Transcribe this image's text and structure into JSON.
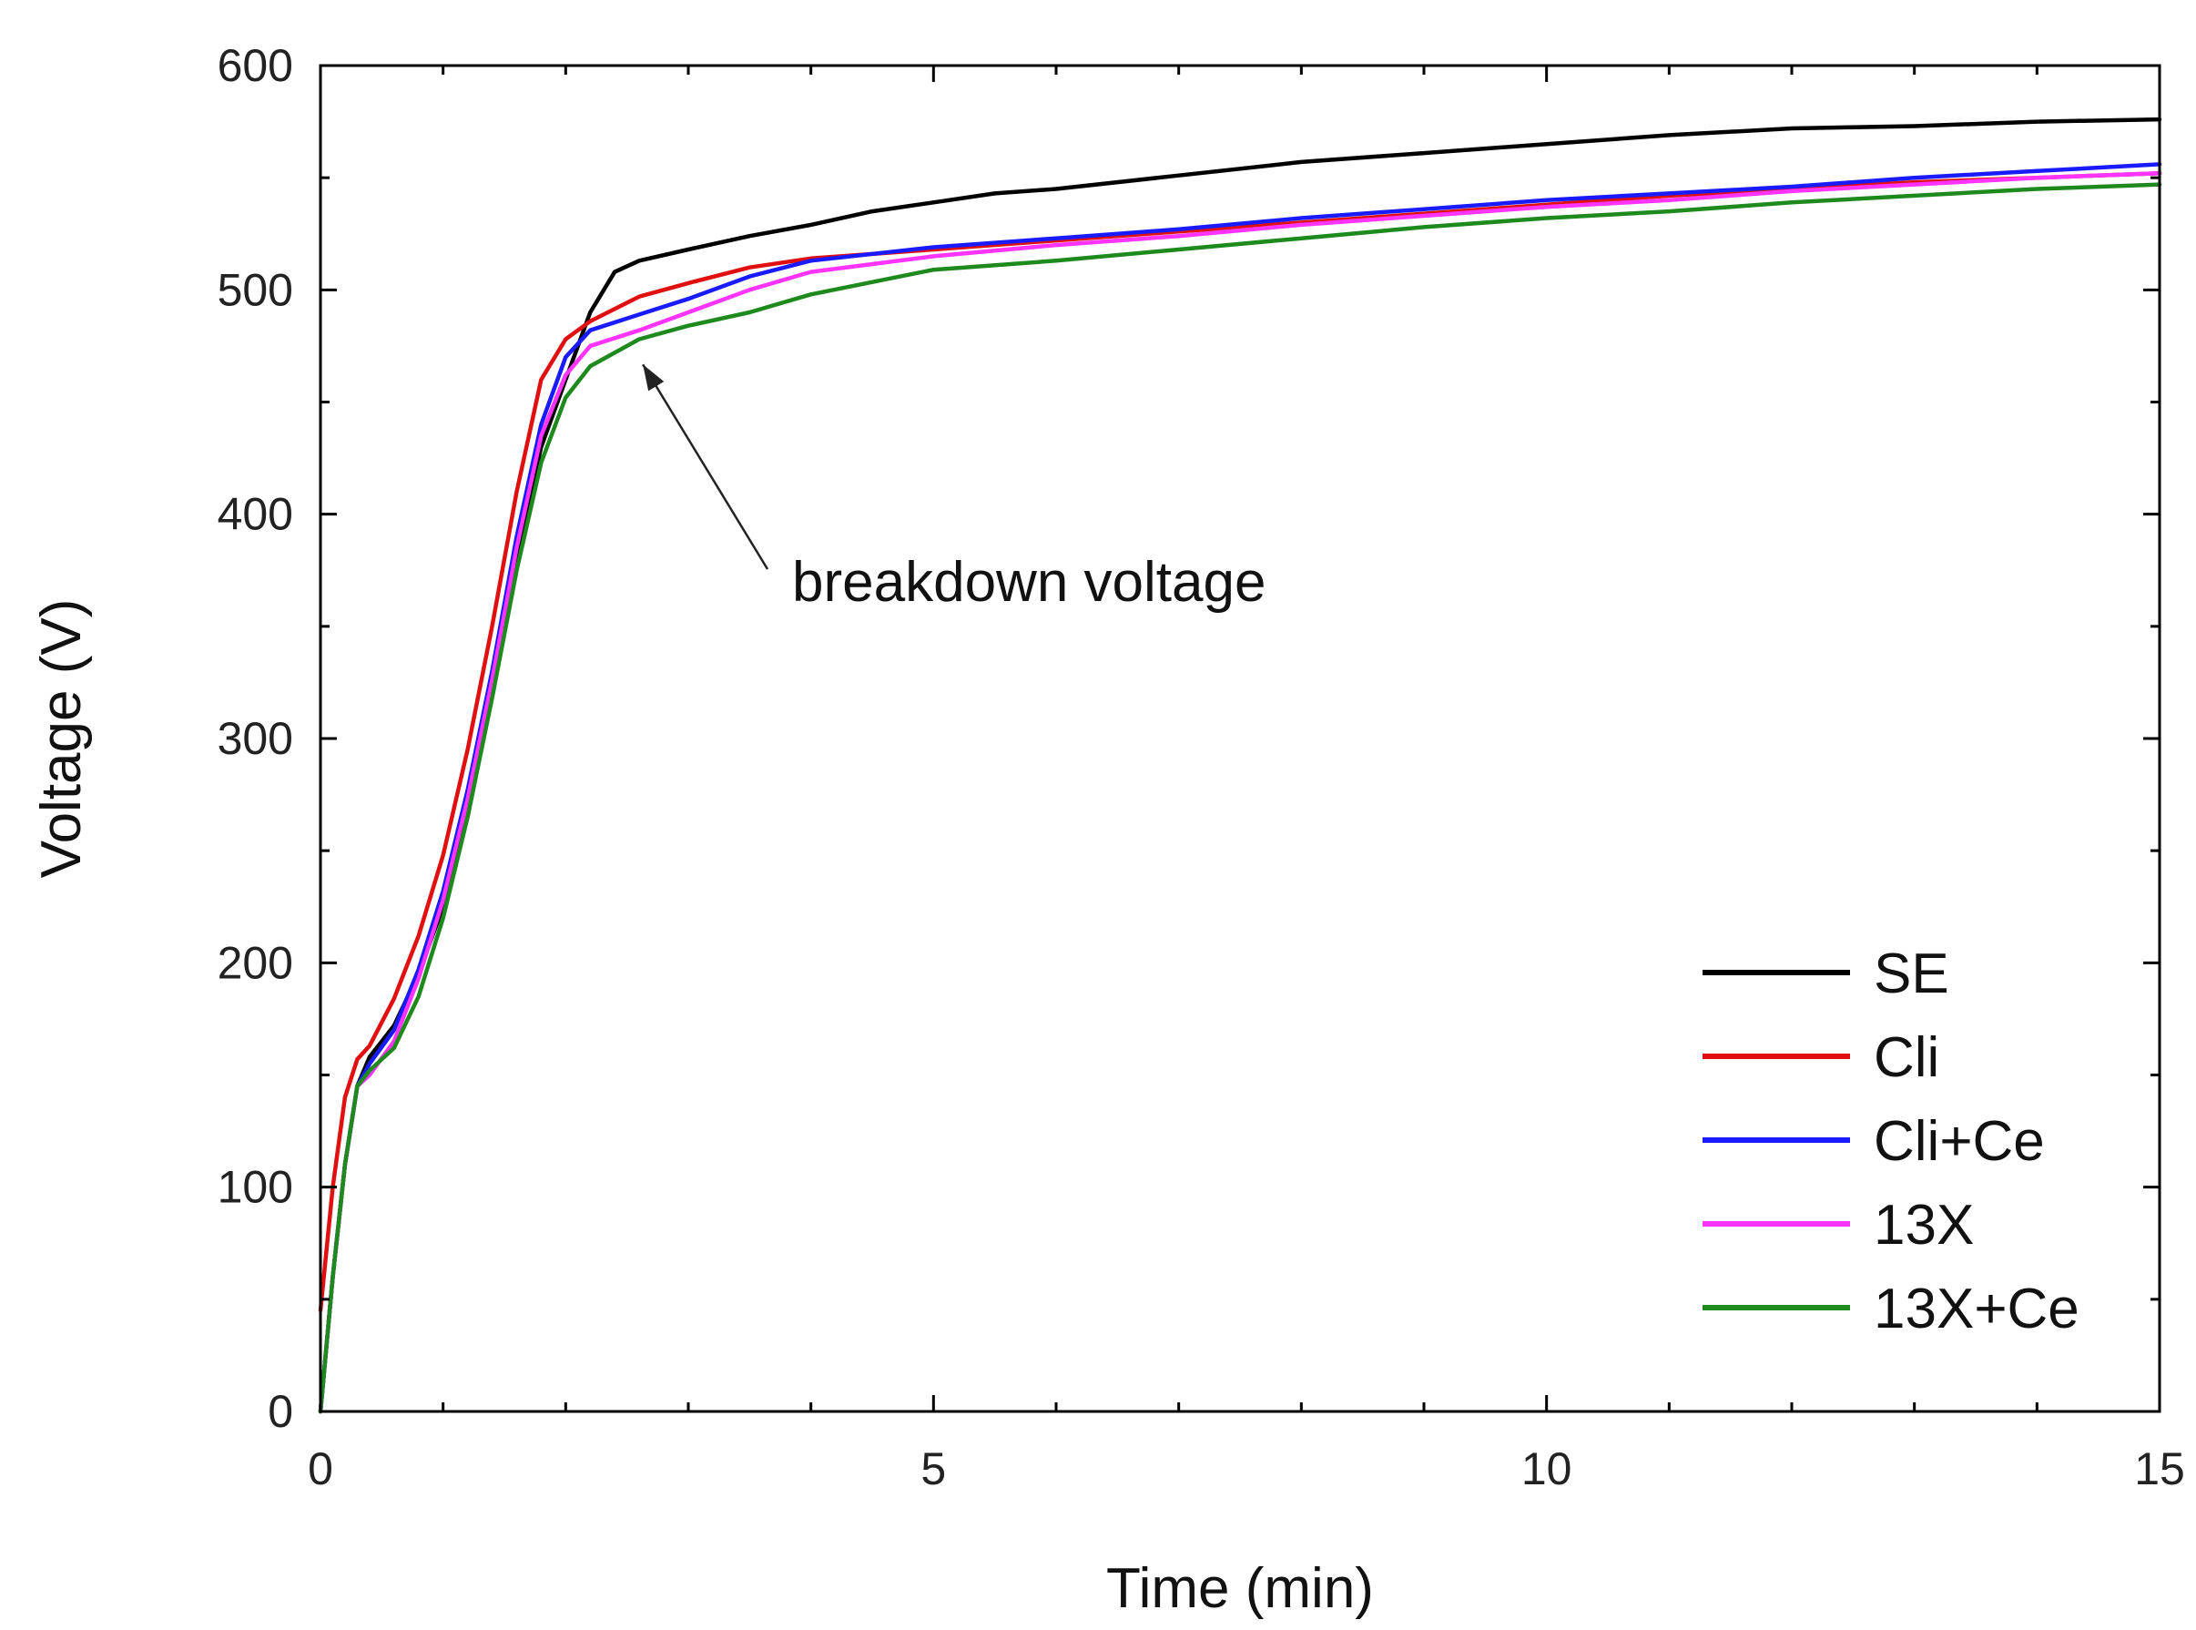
{
  "chart_data": {
    "type": "line",
    "title": "",
    "xlabel": "Time (min)",
    "ylabel": "Voltage (V)",
    "xlim": [
      0,
      15
    ],
    "ylim": [
      0,
      600
    ],
    "xticks": [
      0,
      5,
      10,
      15
    ],
    "yticks": [
      0,
      100,
      200,
      300,
      400,
      500,
      600
    ],
    "grid": false,
    "legend_position": "bottom-right",
    "annotation": {
      "text": "breakdown voltage",
      "points_to": {
        "x": 2.6,
        "y": 470
      }
    },
    "series": [
      {
        "name": "SE",
        "color": "#000000",
        "x": [
          0,
          0.1,
          0.2,
          0.3,
          0.4,
          0.6,
          0.8,
          1.0,
          1.2,
          1.4,
          1.6,
          1.8,
          2.0,
          2.2,
          2.4,
          2.6,
          3,
          3.5,
          4,
          4.5,
          5,
          5.5,
          6,
          7,
          8,
          9,
          10,
          11,
          12,
          13,
          14,
          15
        ],
        "y": [
          0,
          60,
          110,
          145,
          158,
          172,
          195,
          225,
          265,
          320,
          380,
          430,
          460,
          490,
          508,
          513,
          518,
          524,
          529,
          535,
          539,
          543,
          545,
          551,
          557,
          561,
          565,
          569,
          572,
          573,
          575,
          576
        ]
      },
      {
        "name": "Cli",
        "color": "#e01010",
        "x": [
          0,
          0.1,
          0.2,
          0.3,
          0.4,
          0.6,
          0.8,
          1.0,
          1.2,
          1.4,
          1.6,
          1.8,
          2.0,
          2.2,
          2.6,
          3,
          3.5,
          4,
          5,
          6,
          7,
          8,
          9,
          10,
          11,
          12,
          13,
          14,
          15
        ],
        "y": [
          45,
          100,
          140,
          157,
          163,
          184,
          212,
          248,
          295,
          350,
          410,
          460,
          478,
          486,
          497,
          503,
          510,
          514,
          518,
          522,
          526,
          530,
          534,
          538,
          542,
          545,
          548,
          550,
          552
        ]
      },
      {
        "name": "Cli+Ce",
        "color": "#1a1aff",
        "x": [
          0,
          0.1,
          0.2,
          0.3,
          0.4,
          0.6,
          0.8,
          1.0,
          1.2,
          1.4,
          1.6,
          1.8,
          2.0,
          2.2,
          2.6,
          3,
          3.5,
          4,
          5,
          6,
          7,
          8,
          9,
          10,
          11,
          12,
          13,
          14,
          15
        ],
        "y": [
          0,
          60,
          110,
          145,
          155,
          170,
          197,
          232,
          277,
          330,
          390,
          440,
          470,
          482,
          489,
          496,
          506,
          513,
          519,
          523,
          527,
          532,
          536,
          540,
          543,
          546,
          550,
          553,
          556
        ]
      },
      {
        "name": "13X",
        "color": "#ff33ff",
        "x": [
          0,
          0.1,
          0.2,
          0.3,
          0.4,
          0.6,
          0.8,
          1.0,
          1.2,
          1.4,
          1.6,
          1.8,
          2.0,
          2.2,
          2.6,
          3,
          3.5,
          4,
          5,
          6,
          7,
          8,
          9,
          10,
          11,
          12,
          13,
          14,
          15
        ],
        "y": [
          0,
          60,
          110,
          145,
          150,
          165,
          193,
          228,
          273,
          326,
          385,
          435,
          462,
          475,
          482,
          490,
          500,
          508,
          515,
          520,
          524,
          529,
          533,
          537,
          540,
          544,
          547,
          550,
          552
        ]
      },
      {
        "name": "13X+Ce",
        "color": "#1e8a1e",
        "x": [
          0,
          0.1,
          0.2,
          0.3,
          0.4,
          0.6,
          0.8,
          1.0,
          1.2,
          1.4,
          1.6,
          1.8,
          2.0,
          2.2,
          2.6,
          3,
          3.5,
          4,
          5,
          6,
          7,
          8,
          9,
          10,
          11,
          12,
          13,
          14,
          15
        ],
        "y": [
          0,
          60,
          110,
          145,
          152,
          162,
          185,
          220,
          265,
          318,
          375,
          423,
          452,
          466,
          478,
          484,
          490,
          498,
          509,
          513,
          518,
          523,
          528,
          532,
          535,
          539,
          542,
          545,
          547
        ]
      }
    ]
  }
}
